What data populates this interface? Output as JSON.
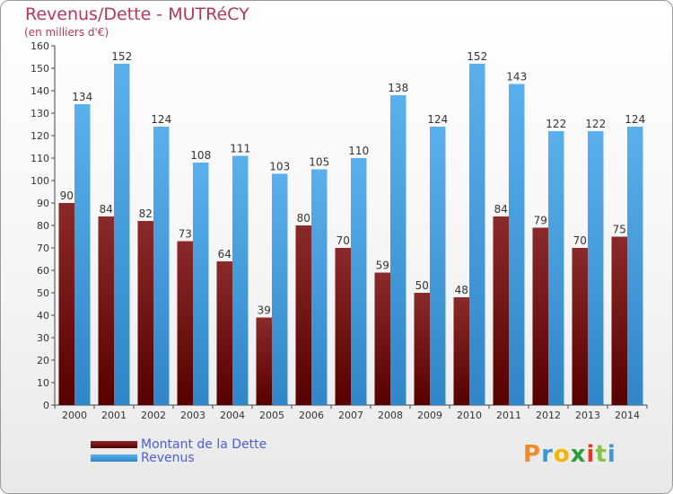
{
  "title": "Revenus/Dette - MUTRéCY",
  "subtitle": "(en milliers d'€)",
  "logo": "Proxiti",
  "colors": {
    "dette": "#6b1414",
    "revenus": "#4ea7e6",
    "title": "#b5375e",
    "legend_text": "#4a5de0"
  },
  "chart_data": {
    "type": "bar",
    "title": "Revenus/Dette - MUTRéCY",
    "ylabel": "(en milliers d'€)",
    "xlabel": "",
    "categories": [
      "2000",
      "2001",
      "2002",
      "2003",
      "2004",
      "2005",
      "2006",
      "2007",
      "2008",
      "2009",
      "2010",
      "2011",
      "2012",
      "2013",
      "2014"
    ],
    "series": [
      {
        "name": "Montant de la Dette",
        "values": [
          90,
          84,
          82,
          73,
          64,
          39,
          80,
          70,
          59,
          50,
          48,
          84,
          79,
          70,
          75
        ]
      },
      {
        "name": "Revenus",
        "values": [
          134,
          152,
          124,
          108,
          111,
          103,
          105,
          110,
          138,
          124,
          152,
          143,
          122,
          122,
          124
        ]
      }
    ],
    "ylim": [
      0,
      160
    ],
    "yticks": [
      0,
      10,
      20,
      30,
      40,
      50,
      60,
      70,
      80,
      90,
      100,
      110,
      120,
      130,
      140,
      150,
      160
    ],
    "grid": false,
    "legend": "bottom-left"
  }
}
